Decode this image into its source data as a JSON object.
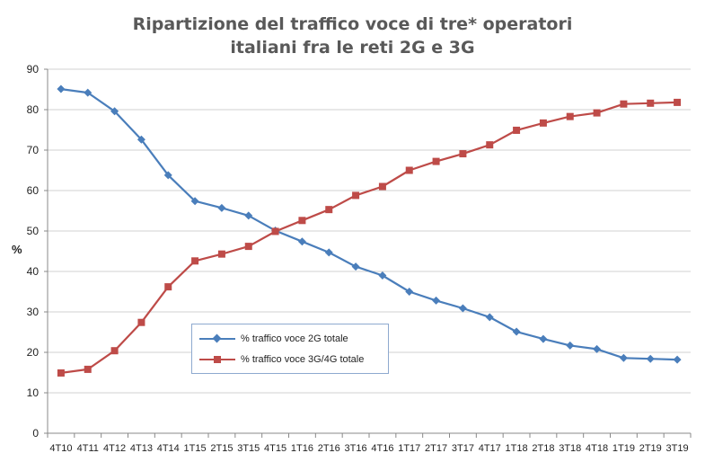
{
  "chart_data": {
    "type": "line",
    "title_lines": [
      "Ripartizione del traffico voce di tre* operatori",
      "italiani fra le reti 2G e 3G"
    ],
    "ylabel": "%",
    "xlabel": "",
    "ylim": [
      0,
      90
    ],
    "yticks": [
      0,
      10,
      20,
      30,
      40,
      50,
      60,
      70,
      80,
      90
    ],
    "grid": "horizontal",
    "legend_position": "center-left",
    "categories": [
      "4T10",
      "4T11",
      "4T12",
      "4T13",
      "4T14",
      "1T15",
      "2T15",
      "3T15",
      "4T15",
      "1T16",
      "2T16",
      "3T16",
      "4T16",
      "1T17",
      "2T17",
      "3T17",
      "4T17",
      "1T18",
      "2T18",
      "3T18",
      "4T18",
      "1T19",
      "2T19",
      "3T19"
    ],
    "series": [
      {
        "name": "% traffico voce 2G totale",
        "color": "#4a7ebb",
        "marker": "diamond",
        "values": [
          85.1,
          84.2,
          79.6,
          72.6,
          63.8,
          57.4,
          55.7,
          53.8,
          50.1,
          47.4,
          44.7,
          41.2,
          39.0,
          35.0,
          32.8,
          30.9,
          28.7,
          25.1,
          23.3,
          21.7,
          20.8,
          18.6,
          18.4,
          18.2
        ]
      },
      {
        "name": "% traffico voce 3G/4G totale",
        "color": "#be4b48",
        "marker": "square",
        "values": [
          14.9,
          15.8,
          20.4,
          27.4,
          36.2,
          42.6,
          44.3,
          46.2,
          49.9,
          52.6,
          55.3,
          58.8,
          61.0,
          65.0,
          67.2,
          69.1,
          71.3,
          74.9,
          76.7,
          78.3,
          79.2,
          81.4,
          81.6,
          81.8
        ]
      }
    ]
  }
}
